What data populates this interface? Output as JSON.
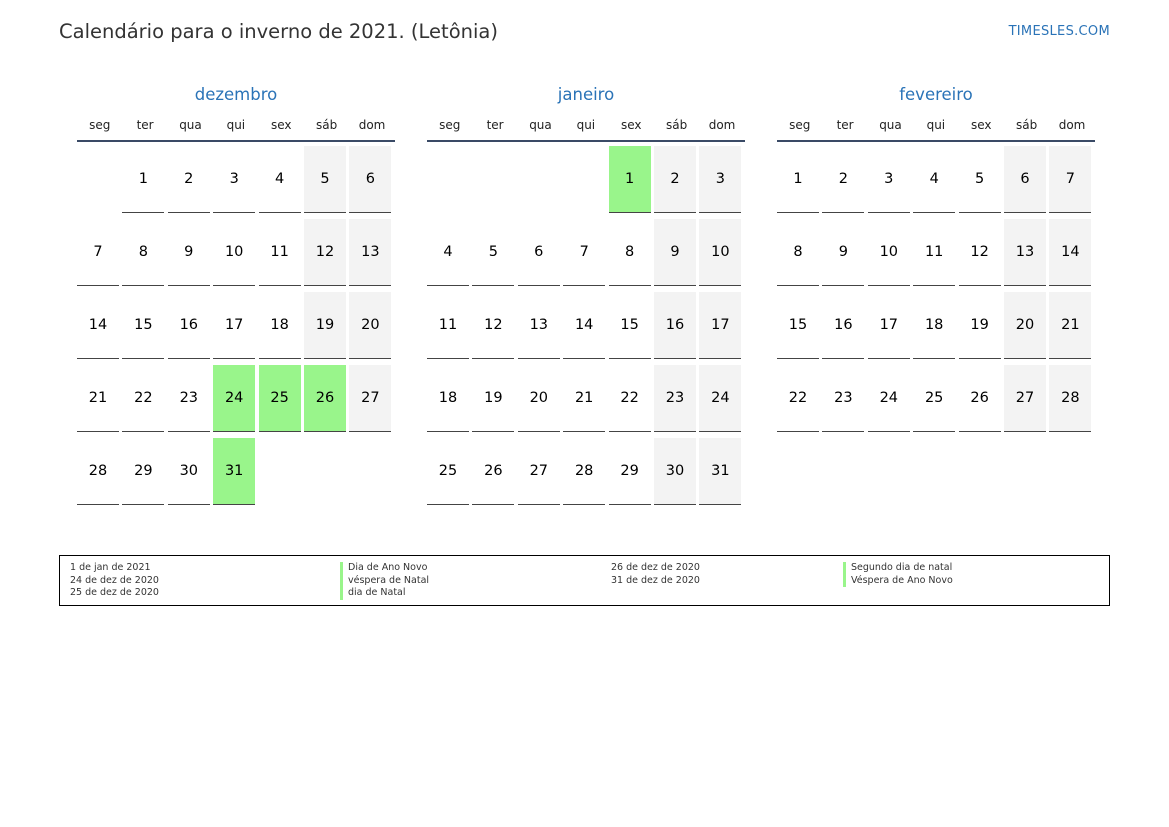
{
  "title": "Calendário para o inverno de 2021. (Letônia)",
  "brand": "TIMESLES.COM",
  "weekdays": [
    "seg",
    "ter",
    "qua",
    "qui",
    "sex",
    "sáb",
    "dom"
  ],
  "months": [
    {
      "name": "dezembro",
      "start_offset": 1,
      "days": 31,
      "holidays": [
        24,
        25,
        26,
        31
      ]
    },
    {
      "name": "janeiro",
      "start_offset": 4,
      "days": 31,
      "holidays": [
        1
      ]
    },
    {
      "name": "fevereiro",
      "start_offset": 0,
      "days": 28,
      "holidays": []
    }
  ],
  "holiday_color": "#99f58b",
  "weekend_color": "#f3f3f3",
  "legend": {
    "col1_dates": [
      "1 de jan de 2021",
      "24 de dez de 2020",
      "25 de dez de 2020"
    ],
    "col1_names": [
      "Dia de Ano Novo",
      "véspera de Natal",
      "dia de Natal"
    ],
    "col2_dates": [
      "26 de dez de 2020",
      "31 de dez de 2020"
    ],
    "col2_names": [
      "Segundo dia de natal",
      "Véspera de Ano Novo"
    ]
  }
}
